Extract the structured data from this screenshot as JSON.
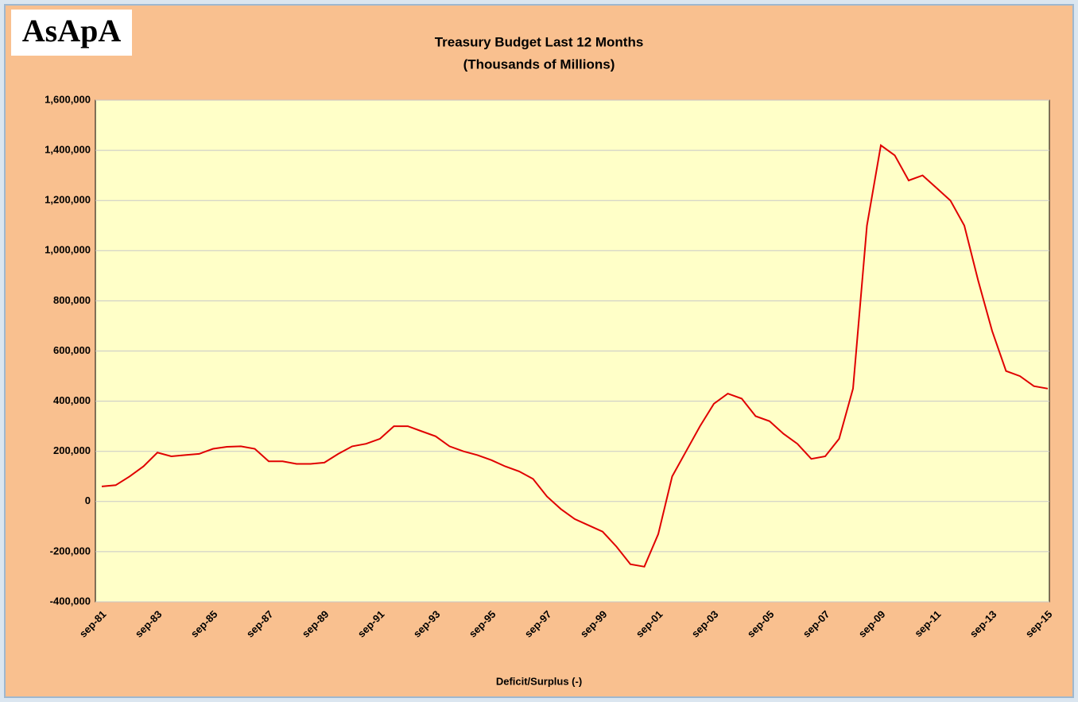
{
  "chart_data": {
    "type": "line",
    "logo": "AsApA",
    "title": "Treasury Budget  Last 12 Months",
    "subtitle": "(Thousands of Millions)",
    "x_label": "Deficit/Surplus (-)",
    "categories": [
      "sep-81",
      null,
      null,
      null,
      "sep-83",
      null,
      null,
      null,
      "sep-85",
      null,
      null,
      null,
      "sep-87",
      null,
      null,
      null,
      "sep-89",
      null,
      null,
      null,
      "sep-91",
      null,
      null,
      null,
      "sep-93",
      null,
      null,
      null,
      "sep-95",
      null,
      null,
      null,
      "sep-97",
      null,
      null,
      null,
      "sep-99",
      null,
      null,
      null,
      "sep-01",
      null,
      null,
      null,
      "sep-03",
      null,
      null,
      null,
      "sep-05",
      null,
      null,
      null,
      "sep-07",
      null,
      null,
      null,
      "sep-09",
      null,
      null,
      null,
      "sep-11",
      null,
      null,
      null,
      "sep-13",
      null,
      null,
      null,
      "sep-15"
    ],
    "series": [
      {
        "name": "Deficit/Surplus (-)",
        "color": "#e00000",
        "values": [
          60000,
          65000,
          100000,
          140000,
          195000,
          180000,
          185000,
          190000,
          210000,
          218000,
          220000,
          210000,
          160000,
          160000,
          150000,
          150000,
          155000,
          190000,
          220000,
          230000,
          250000,
          300000,
          300000,
          280000,
          260000,
          220000,
          200000,
          185000,
          165000,
          140000,
          120000,
          90000,
          20000,
          -30000,
          -70000,
          -95000,
          -120000,
          -180000,
          -250000,
          -260000,
          -130000,
          100000,
          200000,
          300000,
          390000,
          430000,
          410000,
          340000,
          320000,
          270000,
          230000,
          170000,
          180000,
          250000,
          450000,
          1100000,
          1420000,
          1380000,
          1280000,
          1300000,
          1250000,
          1200000,
          1100000,
          880000,
          680000,
          520000,
          500000,
          460000,
          450000
        ]
      }
    ],
    "ylim": [
      -400000,
      1600000
    ],
    "yticks": [
      {
        "value": -400000,
        "label": "-400,000"
      },
      {
        "value": -200000,
        "label": "-200,000"
      },
      0,
      {
        "value": 200000,
        "label": "200,000"
      },
      {
        "value": 400000,
        "label": "400,000"
      },
      {
        "value": 600000,
        "label": "600,000"
      },
      {
        "value": 800000,
        "label": "800,000"
      },
      {
        "value": 1000000,
        "label": "1,000,000"
      },
      {
        "value": 1200000,
        "label": "1,200,000"
      },
      {
        "value": 1400000,
        "label": "1,400,000"
      },
      {
        "value": 1600000,
        "label": "1,600,000"
      }
    ],
    "grid": true
  }
}
